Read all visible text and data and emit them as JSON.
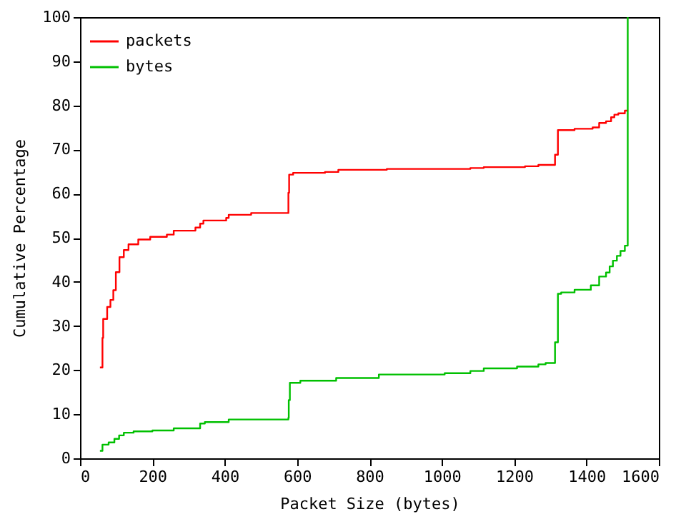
{
  "chart_data": {
    "type": "step",
    "xlabel": "Packet Size (bytes)",
    "ylabel": "Cumulative Percentage",
    "xlim": [
      0,
      1600
    ],
    "xticks": [
      0,
      200,
      400,
      600,
      800,
      1000,
      1200,
      1400,
      1600
    ],
    "ylim": [
      0,
      100
    ],
    "yticks": [
      0,
      10,
      20,
      30,
      40,
      50,
      60,
      70,
      80,
      90,
      100
    ],
    "grid": false,
    "legend": "top left",
    "line_style": "solid",
    "marker": "none",
    "series": [
      {
        "name": "packets",
        "color": "#ff0000",
        "x": [
          55,
          62,
          64,
          75,
          84,
          92,
          99,
          109,
          121,
          134,
          161,
          194,
          240,
          259,
          319,
          332,
          341,
          404,
          411,
          473,
          573,
          576,
          578,
          589,
          677,
          714,
          848,
          1079,
          1116,
          1230,
          1267,
          1313,
          1321,
          1367,
          1417,
          1435,
          1454,
          1468,
          1477,
          1488,
          1506,
          1514
        ],
        "values": [
          20.6,
          27.3,
          31.6,
          34.3,
          35.9,
          38.1,
          42.2,
          45.6,
          47.2,
          48.5,
          49.6,
          50.2,
          50.7,
          51.6,
          52.3,
          53.2,
          53.9,
          54.5,
          55.2,
          55.6,
          55.6,
          60.2,
          64.3,
          64.7,
          64.9,
          65.4,
          65.6,
          65.8,
          66.0,
          66.2,
          66.5,
          68.8,
          74.4,
          74.7,
          75.0,
          76.0,
          76.4,
          77.3,
          77.9,
          78.2,
          78.8,
          78.8
        ]
      },
      {
        "name": "bytes",
        "color": "#00c000",
        "x": [
          55,
          62,
          79,
          95,
          108,
          121,
          148,
          200,
          259,
          332,
          345,
          411,
          576,
          577,
          580,
          609,
          708,
          826,
          1008,
          1079,
          1116,
          1208,
          1267,
          1287,
          1313,
          1321,
          1330,
          1367,
          1412,
          1435,
          1454,
          1464,
          1473,
          1484,
          1494,
          1506,
          1514
        ],
        "values": [
          1.7,
          3.1,
          3.6,
          4.4,
          5.2,
          5.8,
          6.1,
          6.3,
          6.8,
          7.9,
          8.2,
          8.8,
          9.2,
          13.2,
          17.1,
          17.6,
          18.2,
          19.0,
          19.3,
          19.8,
          20.4,
          20.8,
          21.3,
          21.6,
          26.3,
          37.3,
          37.6,
          38.2,
          39.2,
          41.2,
          42.1,
          43.5,
          44.8,
          45.9,
          47.0,
          48.2,
          100
        ]
      }
    ]
  }
}
